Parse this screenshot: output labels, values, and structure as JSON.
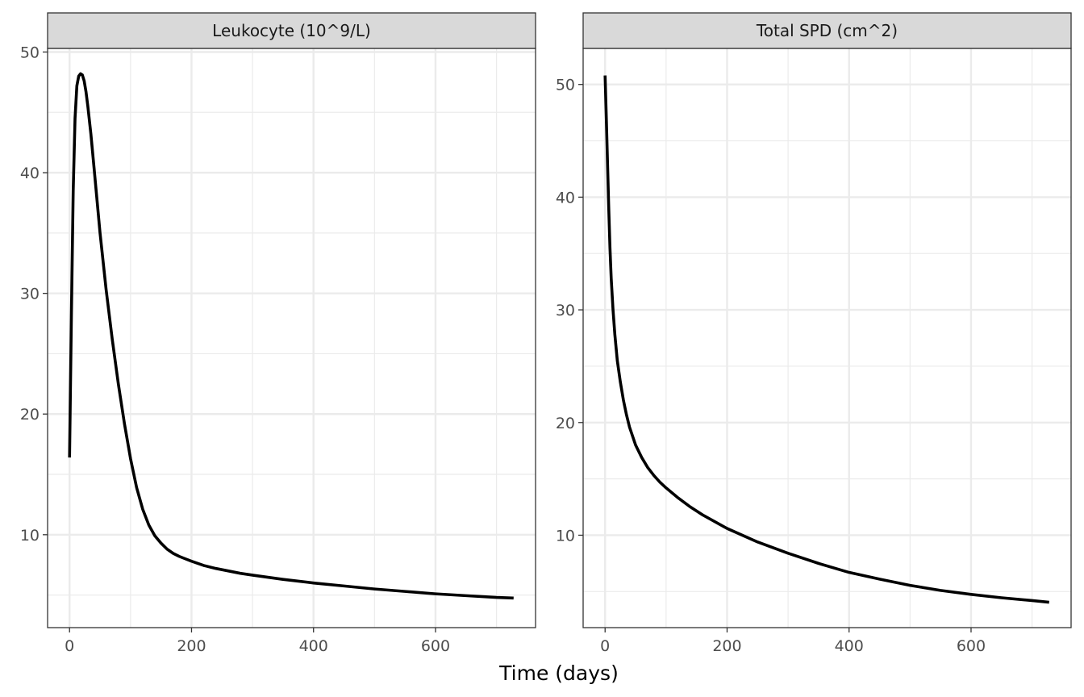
{
  "chart_data": {
    "type": "line",
    "xlabel": "Time (days)",
    "ylabel": "",
    "colors": {
      "line": "#000000",
      "strip_fill": "#d9d9d9",
      "grid": "#ebebeb",
      "panel_border": "#333333"
    },
    "grid": true,
    "legend": "none",
    "panels": [
      {
        "title": "Leukocyte (10^9/L)",
        "xlim": [
          -36,
          764
        ],
        "ylim": [
          2.3,
          50.3
        ],
        "xticks": [
          0,
          200,
          400,
          600
        ],
        "yticks": [
          10,
          20,
          30,
          40,
          50
        ],
        "x": [
          0,
          3,
          6,
          9,
          12,
          15,
          18,
          21,
          24,
          27,
          30,
          35,
          40,
          50,
          60,
          70,
          80,
          90,
          100,
          110,
          120,
          130,
          140,
          150,
          160,
          170,
          180,
          190,
          200,
          220,
          240,
          260,
          280,
          300,
          350,
          400,
          450,
          500,
          550,
          600,
          650,
          700,
          728
        ],
        "y": [
          16.4,
          28.0,
          38.5,
          44.5,
          47.2,
          48.0,
          48.2,
          48.1,
          47.6,
          46.7,
          45.5,
          43.2,
          40.5,
          35.0,
          30.3,
          26.2,
          22.5,
          19.2,
          16.3,
          13.9,
          12.1,
          10.8,
          9.9,
          9.3,
          8.8,
          8.45,
          8.2,
          8.0,
          7.8,
          7.45,
          7.2,
          7.0,
          6.8,
          6.65,
          6.3,
          6.0,
          5.75,
          5.5,
          5.3,
          5.1,
          4.95,
          4.8,
          4.75
        ]
      },
      {
        "title": "Total SPD (cm^2)",
        "xlim": [
          -36,
          764
        ],
        "ylim": [
          1.8,
          53.2
        ],
        "xticks": [
          0,
          200,
          400,
          600
        ],
        "yticks": [
          10,
          20,
          30,
          40,
          50
        ],
        "x": [
          0,
          2,
          4,
          6,
          8,
          10,
          13,
          16,
          20,
          25,
          30,
          35,
          40,
          50,
          60,
          70,
          80,
          90,
          100,
          120,
          140,
          160,
          180,
          200,
          250,
          300,
          350,
          400,
          450,
          500,
          550,
          600,
          650,
          700,
          728
        ],
        "y": [
          50.8,
          47.0,
          43.0,
          39.0,
          35.5,
          32.8,
          30.0,
          27.8,
          25.5,
          23.6,
          22.0,
          20.7,
          19.6,
          18.0,
          16.9,
          16.0,
          15.3,
          14.7,
          14.2,
          13.3,
          12.5,
          11.8,
          11.2,
          10.6,
          9.4,
          8.4,
          7.5,
          6.7,
          6.1,
          5.55,
          5.1,
          4.75,
          4.45,
          4.2,
          4.05
        ]
      }
    ]
  }
}
